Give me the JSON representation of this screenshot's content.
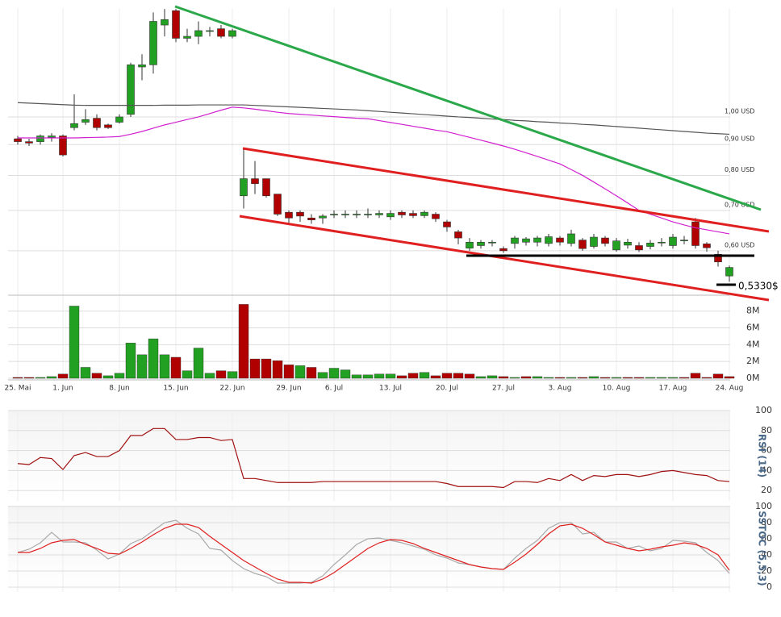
{
  "chart_data": [
    {
      "type": "candlestick",
      "log_scale": true,
      "grid": true,
      "up_color": "#22a022",
      "down_color": "#b00000",
      "categories": [
        "25. Mai",
        null,
        null,
        null,
        "1. Jun",
        null,
        null,
        null,
        null,
        "8. Jun",
        null,
        null,
        null,
        null,
        "15. Jun",
        null,
        null,
        null,
        null,
        "22. Jun",
        null,
        null,
        null,
        null,
        "29. Jun",
        null,
        null,
        null,
        "6. Jul",
        null,
        null,
        null,
        null,
        "13. Jul",
        null,
        null,
        null,
        null,
        "20. Jul",
        null,
        null,
        null,
        null,
        "27. Jul",
        null,
        null,
        null,
        null,
        "3. Aug",
        null,
        null,
        null,
        null,
        "10. Aug",
        null,
        null,
        null,
        null,
        "17. Aug",
        null,
        null,
        null,
        null,
        "24. Aug"
      ],
      "open": [
        0.92,
        0.91,
        0.91,
        0.925,
        0.93,
        0.96,
        0.98,
        0.995,
        0.97,
        0.98,
        1.01,
        1.21,
        1.22,
        1.42,
        1.5,
        1.35,
        1.36,
        1.39,
        1.4,
        1.36,
        0.74,
        0.79,
        0.79,
        0.745,
        0.695,
        0.695,
        0.68,
        0.68,
        0.69,
        0.69,
        0.69,
        0.69,
        0.688,
        0.683,
        0.695,
        0.692,
        0.686,
        0.69,
        0.67,
        0.645,
        0.606,
        0.612,
        0.62,
        0.605,
        0.617,
        0.62,
        0.62,
        0.617,
        0.63,
        0.617,
        0.625,
        0.61,
        0.63,
        0.602,
        0.613,
        0.612,
        0.61,
        0.62,
        0.612,
        0.625,
        0.67,
        0.616,
        0.592,
        0.545
      ],
      "high": [
        0.93,
        0.92,
        0.935,
        0.94,
        0.935,
        1.09,
        1.03,
        1.01,
        0.975,
        1.01,
        1.23,
        1.27,
        1.49,
        1.51,
        1.51,
        1.4,
        1.44,
        1.41,
        1.42,
        1.4,
        0.885,
        0.845,
        0.79,
        0.745,
        0.7,
        0.7,
        0.69,
        0.69,
        0.7,
        0.7,
        0.7,
        0.705,
        0.7,
        0.7,
        0.7,
        0.7,
        0.7,
        0.695,
        0.675,
        0.65,
        0.63,
        0.625,
        0.625,
        0.61,
        0.635,
        0.632,
        0.635,
        0.64,
        0.635,
        0.65,
        0.63,
        0.64,
        0.635,
        0.63,
        0.628,
        0.62,
        0.625,
        0.63,
        0.64,
        0.635,
        0.68,
        0.62,
        0.6,
        0.567
      ],
      "low": [
        0.9,
        0.895,
        0.9,
        0.91,
        0.86,
        0.95,
        0.97,
        0.95,
        0.955,
        0.975,
        1.0,
        1.15,
        1.18,
        1.36,
        1.33,
        1.33,
        1.32,
        1.36,
        1.35,
        1.35,
        0.705,
        0.745,
        0.735,
        0.685,
        0.665,
        0.67,
        0.665,
        0.665,
        0.68,
        0.68,
        0.68,
        0.68,
        0.68,
        0.675,
        0.68,
        0.68,
        0.68,
        0.67,
        0.645,
        0.615,
        0.6,
        0.605,
        0.61,
        0.595,
        0.605,
        0.612,
        0.61,
        0.61,
        0.612,
        0.61,
        0.6,
        0.605,
        0.61,
        0.598,
        0.605,
        0.597,
        0.603,
        0.61,
        0.605,
        0.615,
        0.605,
        0.598,
        0.565,
        0.533
      ],
      "close": [
        0.91,
        0.905,
        0.93,
        0.93,
        0.865,
        0.975,
        0.99,
        0.96,
        0.96,
        1.0,
        1.22,
        1.22,
        1.44,
        1.45,
        1.35,
        1.36,
        1.39,
        1.39,
        1.36,
        1.39,
        0.79,
        0.775,
        0.74,
        0.69,
        0.68,
        0.685,
        0.675,
        0.685,
        0.69,
        0.69,
        0.69,
        0.69,
        0.692,
        0.692,
        0.688,
        0.686,
        0.695,
        0.678,
        0.657,
        0.63,
        0.62,
        0.62,
        0.62,
        0.6,
        0.63,
        0.628,
        0.63,
        0.633,
        0.62,
        0.64,
        0.605,
        0.632,
        0.617,
        0.623,
        0.62,
        0.602,
        0.618,
        0.62,
        0.632,
        0.625,
        0.612,
        0.607,
        0.575,
        0.563
      ],
      "series": [
        {
          "color": "#555555",
          "values": [
            1.056,
            1.054,
            1.052,
            1.05,
            1.048,
            1.046,
            1.045,
            1.045,
            1.045,
            1.045,
            1.045,
            1.045,
            1.045,
            1.046,
            1.046,
            1.046,
            1.047,
            1.047,
            1.047,
            1.047,
            1.047,
            1.045,
            1.043,
            1.041,
            1.039,
            1.037,
            1.035,
            1.033,
            1.031,
            1.029,
            1.027,
            1.024,
            1.021,
            1.018,
            1.015,
            1.012,
            1.009,
            1.006,
            1.003,
            1.0,
            0.998,
            0.995,
            0.992,
            0.99,
            0.987,
            0.985,
            0.982,
            0.98,
            0.977,
            0.975,
            0.972,
            0.97,
            0.967,
            0.964,
            0.961,
            0.958,
            0.955,
            0.952,
            0.949,
            0.946,
            0.943,
            0.94,
            0.938,
            0.936
          ]
        },
        {
          "color": "#d020d0",
          "values": [
            0.923,
            0.923,
            0.923,
            0.923,
            0.923,
            0.923,
            0.924,
            0.925,
            0.926,
            0.928,
            0.936,
            0.946,
            0.958,
            0.97,
            0.98,
            0.99,
            1.0,
            1.013,
            1.026,
            1.038,
            1.035,
            1.03,
            1.024,
            1.018,
            1.013,
            1.01,
            1.007,
            1.004,
            1.001,
            0.998,
            0.995,
            0.993,
            0.986,
            0.979,
            0.972,
            0.965,
            0.958,
            0.951,
            0.945,
            0.935,
            0.925,
            0.915,
            0.905,
            0.895,
            0.884,
            0.872,
            0.86,
            0.848,
            0.836,
            0.818,
            0.8,
            0.78,
            0.76,
            0.74,
            0.72,
            0.7,
            0.69,
            0.68,
            0.67,
            0.662,
            0.655,
            0.65,
            0.645,
            0.64
          ]
        }
      ],
      "ylim": [
        0.508,
        1.515
      ],
      "yticks": [
        {
          "value": 0.6,
          "label": "0,60 USD"
        },
        {
          "value": 0.7,
          "label": "0,70 USD"
        },
        {
          "value": 0.8,
          "label": "0,80 USD"
        },
        {
          "value": 0.9,
          "label": "0,90 USD"
        },
        {
          "value": 1.0,
          "label": "1,00 USD"
        }
      ],
      "annotation": "0,5330$"
    },
    {
      "type": "bar",
      "grid": true,
      "values": [
        0.1,
        0.1,
        0.1,
        0.2,
        0.5,
        8.6,
        1.3,
        0.6,
        0.3,
        0.6,
        4.2,
        2.8,
        4.7,
        2.8,
        2.5,
        0.9,
        3.6,
        0.6,
        0.9,
        0.8,
        8.8,
        2.3,
        2.3,
        2.1,
        1.6,
        1.5,
        1.3,
        0.7,
        1.2,
        1.0,
        0.4,
        0.4,
        0.5,
        0.5,
        0.3,
        0.6,
        0.7,
        0.3,
        0.6,
        0.6,
        0.5,
        0.2,
        0.3,
        0.2,
        0.1,
        0.2,
        0.2,
        0.1,
        0.1,
        0.1,
        0.1,
        0.2,
        0.1,
        0.1,
        0.1,
        0.1,
        0.1,
        0.1,
        0.1,
        0.1,
        0.6,
        0.1,
        0.5,
        0.2
      ],
      "ylim": [
        0,
        9.8
      ],
      "yticks": [
        {
          "value": 0,
          "label": "0M"
        },
        {
          "value": 2,
          "label": "2M"
        },
        {
          "value": 4,
          "label": "4M"
        },
        {
          "value": 6,
          "label": "6M"
        },
        {
          "value": 8,
          "label": "8M"
        }
      ]
    },
    {
      "type": "line",
      "title": "RSI (14)",
      "grid": true,
      "series": [
        {
          "color": "#a01010",
          "values": [
            47,
            46,
            53,
            52,
            41,
            55,
            58,
            54,
            54,
            60,
            75,
            75,
            82,
            82,
            71,
            71,
            73,
            73,
            70,
            71,
            32,
            32,
            30,
            28,
            28,
            28,
            28,
            29,
            29,
            29,
            29,
            29,
            29,
            29,
            29,
            29,
            29,
            29,
            27,
            24,
            24,
            24,
            24,
            23,
            29,
            29,
            28,
            32,
            30,
            36,
            30,
            35,
            34,
            36,
            36,
            34,
            36,
            39,
            40,
            38,
            36,
            35,
            30,
            29
          ]
        }
      ],
      "ylim": [
        10,
        100
      ],
      "yticks": [
        20,
        40,
        60,
        80,
        100
      ]
    },
    {
      "type": "line",
      "title": "SSTOC (5,5,3)",
      "grid": true,
      "series": [
        {
          "color": "#aaaaaa",
          "values": [
            43,
            47,
            55,
            68,
            56,
            56,
            55,
            46,
            35,
            41,
            54,
            60,
            70,
            80,
            83,
            73,
            66,
            48,
            46,
            33,
            23,
            17,
            13,
            5,
            5,
            5,
            6,
            14,
            28,
            40,
            53,
            60,
            61,
            58,
            55,
            51,
            47,
            40,
            36,
            30,
            28,
            25,
            23,
            22,
            36,
            48,
            58,
            73,
            80,
            80,
            66,
            68,
            56,
            56,
            48,
            51,
            45,
            48,
            58,
            57,
            55,
            43,
            33,
            17
          ]
        },
        {
          "color": "#e02020",
          "values": [
            43,
            43,
            48,
            55,
            58,
            59,
            53,
            48,
            42,
            41,
            48,
            56,
            65,
            73,
            78,
            78,
            74,
            63,
            53,
            43,
            33,
            25,
            17,
            10,
            6,
            6,
            5,
            10,
            18,
            28,
            38,
            48,
            55,
            59,
            58,
            54,
            48,
            43,
            38,
            33,
            28,
            25,
            23,
            22,
            31,
            41,
            53,
            66,
            76,
            78,
            73,
            65,
            56,
            52,
            48,
            45,
            47,
            50,
            52,
            55,
            53,
            48,
            40,
            21
          ]
        }
      ],
      "ylim": [
        -5,
        100
      ],
      "yticks": [
        0,
        20,
        40,
        60,
        80,
        100
      ]
    }
  ]
}
